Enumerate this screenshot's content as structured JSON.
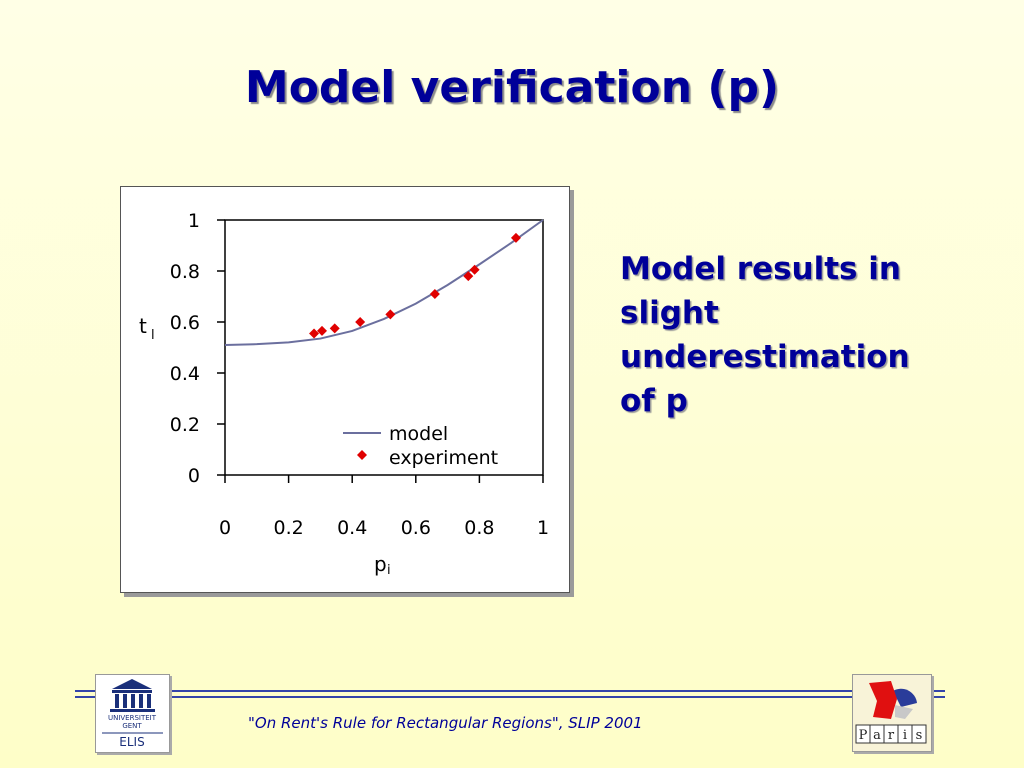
{
  "slide": {
    "title": "Model verification (p)",
    "side_text": [
      "Model results in",
      "slight",
      "underestimation",
      "of p"
    ],
    "footer": "\"On Rent's Rule for Rectangular Regions\", SLIP 2001",
    "logos": {
      "left": [
        "UNIVERSITEIT",
        "GENT",
        "ELIS"
      ],
      "right": [
        "P",
        "a",
        "r",
        "i",
        "s"
      ]
    }
  },
  "colors": {
    "title": "#000099",
    "model_line": "#6b6f9e",
    "experiment_marker": "#e00000",
    "footer_rule": "#3344aa"
  },
  "chart_data": {
    "type": "scatter",
    "xlabel": "p",
    "xlabel_sub": "i",
    "ylabel": "t",
    "ylabel_sub": "l",
    "xlim": [
      0,
      1
    ],
    "ylim": [
      0,
      1
    ],
    "x_ticks": [
      "0",
      "0.2",
      "0.4",
      "0.6",
      "0.8",
      "1"
    ],
    "y_ticks": [
      "0",
      "0.2",
      "0.4",
      "0.6",
      "0.8",
      "1"
    ],
    "legend_position": "bottom-right",
    "series": [
      {
        "name": "model",
        "kind": "line",
        "x": [
          0.0,
          0.1,
          0.2,
          0.3,
          0.4,
          0.5,
          0.6,
          0.7,
          0.8,
          0.9,
          1.0
        ],
        "y": [
          0.51,
          0.513,
          0.52,
          0.535,
          0.565,
          0.612,
          0.672,
          0.745,
          0.826,
          0.91,
          1.0
        ]
      },
      {
        "name": "experiment",
        "kind": "scatter",
        "x": [
          0.28,
          0.305,
          0.345,
          0.425,
          0.52,
          0.66,
          0.765,
          0.785,
          0.915
        ],
        "y": [
          0.555,
          0.565,
          0.575,
          0.6,
          0.63,
          0.71,
          0.78,
          0.805,
          0.93
        ]
      }
    ]
  }
}
